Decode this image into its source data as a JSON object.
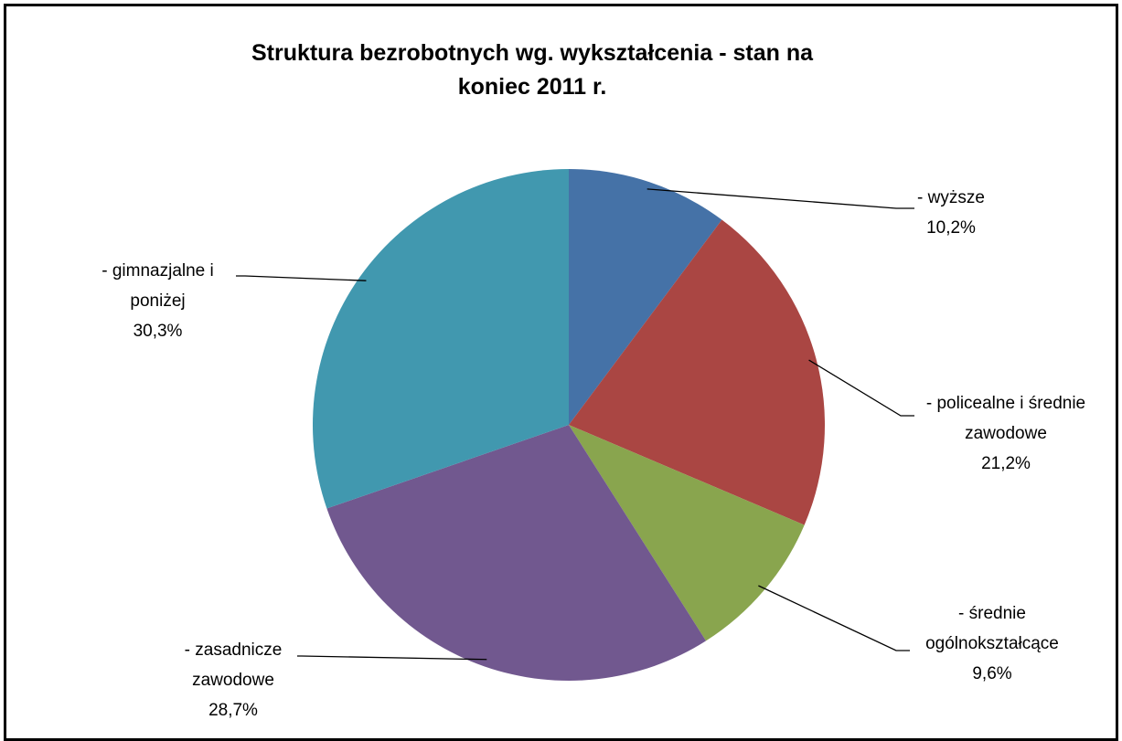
{
  "chart_data": {
    "type": "pie",
    "title": "Struktura bezrobotnych wg. wykształcenia - stan na koniec 2011 r.",
    "categories": [
      "- wyższe",
      "- policealne i średnie zawodowe",
      "- średnie ogólnokształcące",
      "- zasadnicze zawodowe",
      "- gimnazjalne i poniżej"
    ],
    "values": [
      10.2,
      21.2,
      9.6,
      28.7,
      30.3
    ],
    "value_labels": [
      "10,2%",
      "21,2%",
      "9,6%",
      "28,7%",
      "30,3%"
    ],
    "colors": [
      "#4572a7",
      "#aa4643",
      "#89a54e",
      "#71588f",
      "#4198af"
    ]
  }
}
